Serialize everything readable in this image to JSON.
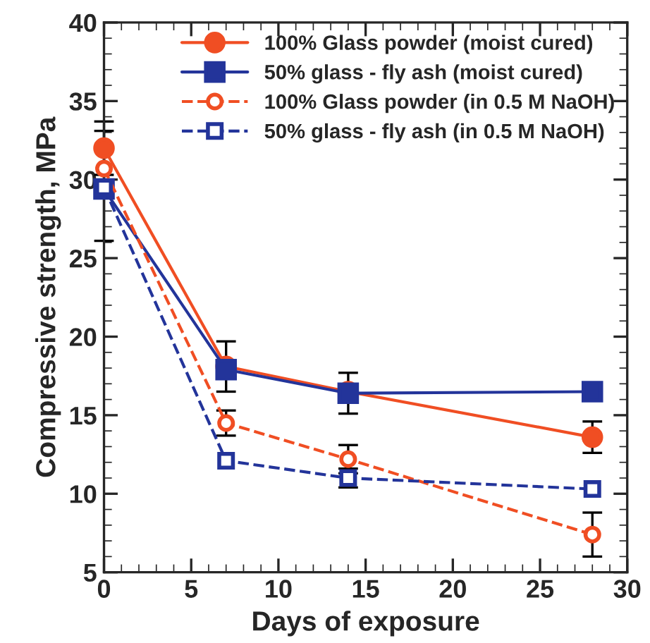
{
  "chart_data": {
    "type": "line",
    "xlabel": "Days of exposure",
    "ylabel": "Compressive strength, MPa",
    "x": [
      0,
      7,
      14,
      28
    ],
    "xlim": [
      0,
      30
    ],
    "xticks": [
      0,
      5,
      10,
      15,
      20,
      25,
      30
    ],
    "ylim": [
      5,
      40
    ],
    "yticks": [
      5,
      10,
      15,
      20,
      25,
      30,
      35,
      40
    ],
    "legend": "top right",
    "grid": false,
    "series": [
      {
        "name": "100% Glass powder (moist cured)",
        "color": "#f04e23",
        "marker": "circle",
        "line_style": "solid",
        "values": [
          32,
          18.1,
          16.5,
          13.6
        ],
        "errors": [
          1.7,
          1.6,
          null,
          1.0
        ]
      },
      {
        "name": "50% glass - fly ash (moist cured)",
        "color": "#23349a",
        "marker": "square",
        "line_style": "solid",
        "values": [
          29.4,
          17.9,
          16.4,
          16.5
        ],
        "errors": [
          [
            26.1,
            33.1
          ],
          null,
          1.3,
          null
        ]
      },
      {
        "name": "100% Glass powder (in 0.5 M NaOH)",
        "color": "#f04e23",
        "marker": "circle",
        "line_style": "dashed",
        "values": [
          30.7,
          14.5,
          12.2,
          7.4
        ],
        "errors": [
          null,
          0.8,
          0.9,
          1.4
        ]
      },
      {
        "name": "50% glass - fly ash (in 0.5 M NaOH)",
        "color": "#23349a",
        "marker": "square",
        "line_style": "dashed",
        "values": [
          29.5,
          12.1,
          11.0,
          10.3
        ],
        "errors": [
          null,
          null,
          0.6,
          null
        ]
      }
    ]
  }
}
